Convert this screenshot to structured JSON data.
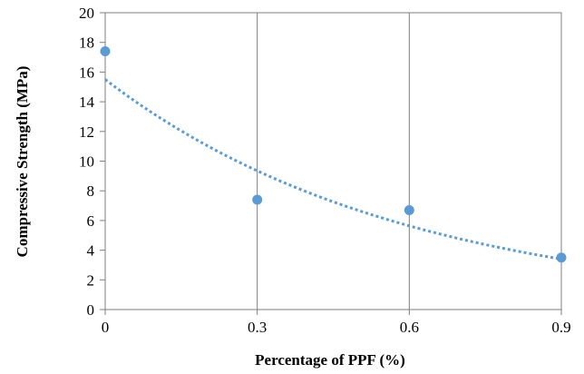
{
  "chart_data": {
    "type": "scatter",
    "xlabel": "Percentage of PPF (%)",
    "ylabel": "Compressive Strength  (MPa)",
    "xlim": [
      0,
      0.9
    ],
    "ylim": [
      0,
      20
    ],
    "x_ticks": [
      "0",
      "0.3",
      "0.6",
      "0.9"
    ],
    "y_ticks": [
      "0",
      "2",
      "4",
      "6",
      "8",
      "10",
      "12",
      "14",
      "16",
      "18",
      "20"
    ],
    "grid": "vertical",
    "series": [
      {
        "x": [
          0,
          0.3,
          0.6,
          0.9
        ],
        "y": [
          17.4,
          7.4,
          6.7,
          3.5
        ],
        "color": "#5B9BD5"
      }
    ],
    "trendline": {
      "type": "exponential",
      "style": "dotted",
      "color": "#5B9BD5",
      "start_y": 15.5,
      "end_y": 3.4
    }
  }
}
